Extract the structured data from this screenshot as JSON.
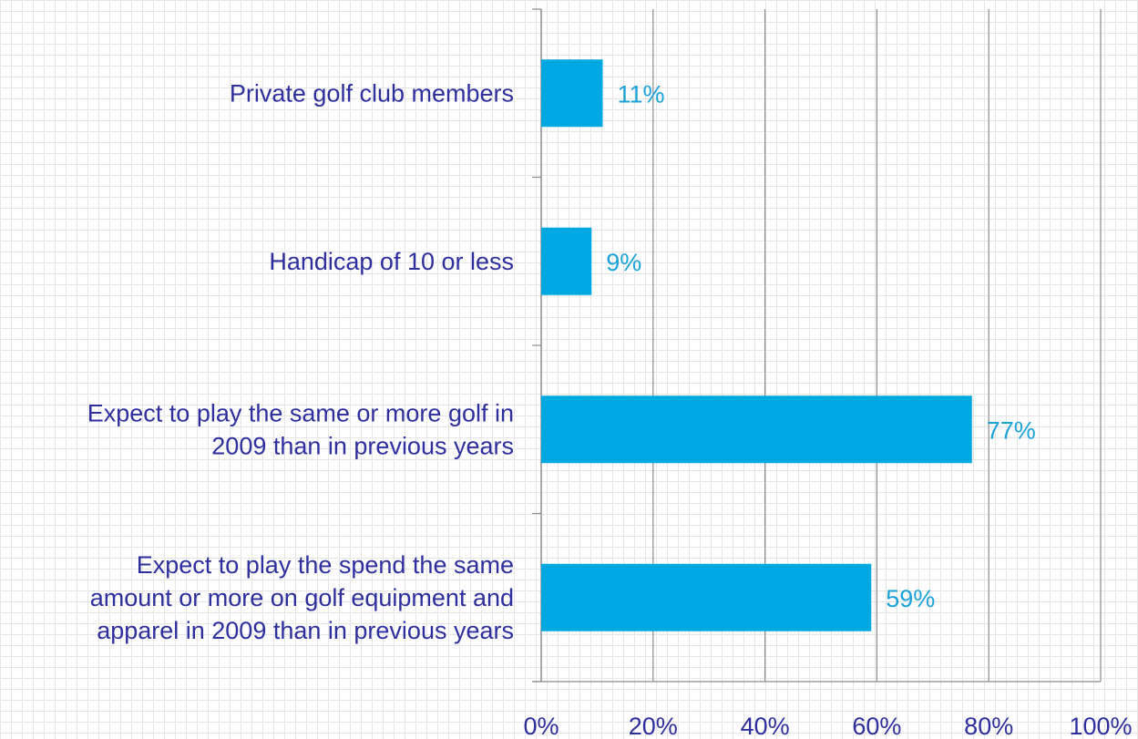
{
  "chart_data": {
    "type": "bar",
    "orientation": "horizontal",
    "title": "",
    "xlabel": "",
    "ylabel": "",
    "categories": [
      [
        "Private golf club members"
      ],
      [
        "Handicap of 10 or less"
      ],
      [
        "Expect to play the same or more golf in",
        "2009 than in previous years"
      ],
      [
        "Expect to play the spend the same",
        "amount or more on golf equipment and",
        "apparel in 2009 than in previous years"
      ]
    ],
    "values": [
      11,
      9,
      77,
      59
    ],
    "data_labels": [
      "11%",
      "9%",
      "77%",
      "59%"
    ],
    "xlim": [
      0,
      100
    ],
    "xticks": [
      0,
      20,
      40,
      60,
      80,
      100
    ],
    "xtick_labels": [
      "0%",
      "20%",
      "40%",
      "60%",
      "80%",
      "100%"
    ],
    "grid": "vertical",
    "legend": "none",
    "colors": {
      "bar": "#00a8e1",
      "data_label": "#1aa3d9",
      "axis_text": "#2e2e9e",
      "gridline": "#8c8c8c",
      "axis": "#8c8c8c"
    }
  }
}
